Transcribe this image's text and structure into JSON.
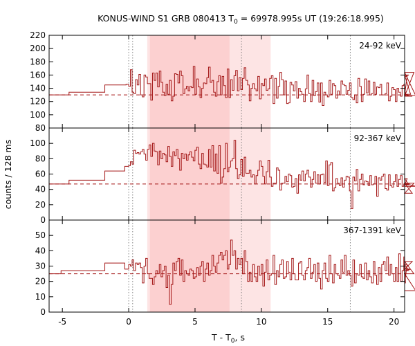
{
  "chart_data": {
    "type": "line",
    "title": "KONUS-WIND S1 GRB 080413 T",
    "title_sub": "0",
    "title_rest": " = 69978.995s UT (19:26:18.995)",
    "xlabel": "T - T",
    "xlabel_sub": "0",
    "xlabel_rest": ", s",
    "ylabel": "counts / 128 ms",
    "xlim": [
      -6,
      20.8
    ],
    "x_ticks": [
      -5,
      0,
      5,
      10,
      15,
      20
    ],
    "x_tick_labels": [
      "-5",
      "0",
      "5",
      "10",
      "15",
      "20"
    ],
    "shaded_intervals": [
      {
        "from": 1.4,
        "to": 10.7,
        "color": "#fde4e4"
      },
      {
        "from": 1.6,
        "to": 7.6,
        "color": "#fcd0d0"
      }
    ],
    "vertical_markers": [
      0.0,
      0.3,
      8.5,
      16.7
    ],
    "line_color": "#a31515",
    "panels": [
      {
        "band": "24-92 keV",
        "ylim": [
          80,
          220
        ],
        "y_ticks": [
          80,
          100,
          120,
          140,
          160,
          180,
          200,
          220
        ],
        "y_tick_labels": [
          "80",
          "100",
          "120",
          "140",
          "160",
          "180",
          "200",
          "220"
        ],
        "background": 130,
        "steps": [
          [
            -6.0,
            130
          ],
          [
            -4.5,
            134
          ],
          [
            -1.8,
            145
          ],
          [
            -0.2,
            146
          ]
        ],
        "values": [
          143,
          168,
          134,
          132,
          153,
          145,
          161,
          130,
          127,
          160,
          157,
          147,
          147,
          122,
          163,
          152,
          163,
          142,
          166,
          149,
          134,
          129,
          146,
          131,
          152,
          121,
          128,
          162,
          161,
          148,
          166,
          159,
          132,
          139,
          143,
          136,
          143,
          141,
          173,
          131,
          154,
          142,
          126,
          140,
          148,
          147,
          156,
          172,
          149,
          152,
          134,
          128,
          150,
          159,
          130,
          158,
          144,
          126,
          169,
          126,
          153,
          137,
          159,
          167,
          136,
          156,
          138,
          155,
          171,
          152,
          145,
          121,
          140,
          147,
          139,
          136,
          158,
          124,
          147,
          144,
          154,
          137,
          139,
          155,
          159,
          117,
          155,
          125,
          143,
          164,
          153,
          130,
          151,
          117,
          118,
          149,
          145,
          136,
          150,
          125,
          140,
          135,
          131,
          120,
          139,
          160,
          132,
          120,
          152,
          129,
          135,
          148,
          119,
          148,
          114,
          134,
          130,
          127,
          152,
          131,
          147,
          144,
          125,
          136,
          130,
          151,
          146,
          144,
          131,
          137,
          148,
          126,
          123,
          130,
          118,
          155,
          143,
          120,
          131,
          154,
          133,
          151,
          130,
          132,
          149,
          131,
          142,
          141,
          146,
          130,
          130,
          132,
          148,
          121,
          128,
          141,
          138,
          120,
          140,
          134,
          128,
          144,
          146,
          130,
          158,
          160,
          131,
          128,
          164,
          129
        ]
      },
      {
        "band": "92-367 keV",
        "ylim": [
          0,
          120
        ],
        "y_ticks": [
          0,
          20,
          40,
          60,
          80,
          100
        ],
        "y_tick_labels": [
          "0",
          "20",
          "40",
          "60",
          "80",
          "100"
        ],
        "background": 47,
        "steps": [
          [
            -6.0,
            47
          ],
          [
            -4.5,
            52
          ],
          [
            -1.8,
            64
          ],
          [
            -0.3,
            70
          ]
        ],
        "values": [
          71,
          76,
          73,
          91,
          87,
          88,
          86,
          89,
          92,
          86,
          78,
          92,
          98,
          83,
          100,
          90,
          89,
          72,
          90,
          80,
          87,
          85,
          76,
          96,
          83,
          70,
          89,
          84,
          92,
          80,
          65,
          87,
          80,
          86,
          78,
          85,
          89,
          82,
          77,
          91,
          95,
          73,
          67,
          87,
          73,
          72,
          69,
          92,
          69,
          97,
          64,
          86,
          61,
          97,
          48,
          56,
          67,
          100,
          63,
          69,
          77,
          80,
          104,
          67,
          54,
          59,
          79,
          57,
          82,
          61,
          61,
          65,
          56,
          59,
          47,
          58,
          65,
          77,
          70,
          57,
          47,
          63,
          78,
          56,
          44,
          48,
          48,
          68,
          65,
          39,
          48,
          48,
          57,
          50,
          60,
          58,
          43,
          44,
          54,
          35,
          59,
          52,
          64,
          51,
          60,
          65,
          56,
          43,
          53,
          63,
          48,
          59,
          47,
          59,
          60,
          49,
          77,
          45,
          72,
          75,
          38,
          42,
          54,
          48,
          45,
          55,
          43,
          52,
          57,
          56,
          38,
          15,
          56,
          51,
          66,
          38,
          53,
          60,
          46,
          51,
          50,
          45,
          58,
          46,
          47,
          57,
          31,
          55,
          52,
          57,
          60,
          41,
          39,
          59,
          45,
          43,
          50,
          59,
          44,
          53,
          58,
          44,
          47,
          46,
          54,
          46,
          48,
          35,
          48,
          44
        ]
      },
      {
        "band": "367-1391 keV",
        "ylim": [
          0,
          60
        ],
        "y_ticks": [
          0,
          10,
          20,
          30,
          40,
          50
        ],
        "y_tick_labels": [
          "0",
          "10",
          "20",
          "30",
          "40",
          "50"
        ],
        "background": 25,
        "steps": [
          [
            -6.0,
            25
          ],
          [
            -5.1,
            27
          ],
          [
            -1.8,
            32
          ],
          [
            -0.3,
            28
          ]
        ],
        "values": [
          31,
          30,
          34,
          27,
          32,
          31,
          32,
          29,
          19,
          30,
          35,
          25,
          22,
          22,
          18,
          23,
          27,
          25,
          31,
          23,
          27,
          30,
          16,
          24,
          5,
          18,
          32,
          27,
          33,
          35,
          24,
          34,
          20,
          27,
          25,
          24,
          28,
          27,
          22,
          23,
          29,
          24,
          30,
          33,
          20,
          28,
          32,
          24,
          27,
          37,
          30,
          26,
          32,
          37,
          39,
          34,
          37,
          40,
          28,
          31,
          47,
          37,
          40,
          28,
          35,
          31,
          35,
          25,
          40,
          33,
          20,
          26,
          20,
          31,
          23,
          20,
          30,
          24,
          31,
          17,
          26,
          34,
          21,
          24,
          25,
          37,
          18,
          27,
          23,
          31,
          34,
          22,
          23,
          33,
          26,
          21,
          35,
          25,
          21,
          21,
          32,
          33,
          24,
          21,
          27,
          29,
          35,
          22,
          26,
          31,
          20,
          32,
          22,
          15,
          27,
          32,
          22,
          20,
          37,
          25,
          19,
          31,
          25,
          24,
          22,
          34,
          26,
          37,
          24,
          27,
          24,
          17,
          34,
          19,
          25,
          24,
          31,
          23,
          22,
          32,
          21,
          27,
          23,
          19,
          33,
          24,
          18,
          29,
          20,
          31,
          33,
          27,
          36,
          24,
          31,
          25,
          20,
          29,
          20,
          38,
          20,
          27,
          36,
          19,
          31,
          27,
          28,
          33,
          25,
          14
        ]
      }
    ]
  }
}
